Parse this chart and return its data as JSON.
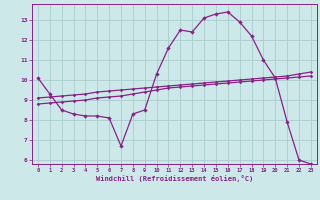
{
  "xlabel": "Windchill (Refroidissement éolien,°C)",
  "bg_color": "#cce8e8",
  "grid_color": "#aacccc",
  "line_color": "#882288",
  "xlim": [
    -0.5,
    23.5
  ],
  "ylim": [
    5.8,
    13.8
  ],
  "xticks": [
    0,
    1,
    2,
    3,
    4,
    5,
    6,
    7,
    8,
    9,
    10,
    11,
    12,
    13,
    14,
    15,
    16,
    17,
    18,
    19,
    20,
    21,
    22,
    23
  ],
  "yticks": [
    6,
    7,
    8,
    9,
    10,
    11,
    12,
    13
  ],
  "line1_x": [
    0,
    1,
    2,
    3,
    4,
    5,
    6,
    7,
    8,
    9,
    10,
    11,
    12,
    13,
    14,
    15,
    16,
    17,
    18,
    19,
    20,
    21,
    22,
    23
  ],
  "line1_y": [
    10.1,
    9.3,
    8.5,
    8.3,
    8.2,
    8.2,
    8.1,
    6.7,
    8.3,
    8.5,
    10.3,
    11.6,
    12.5,
    12.4,
    13.1,
    13.3,
    13.4,
    12.9,
    12.2,
    11.0,
    10.1,
    7.9,
    6.0,
    5.8
  ],
  "line2_x": [
    0,
    1,
    2,
    3,
    4,
    5,
    6,
    7,
    8,
    9,
    10,
    11,
    12,
    13,
    14,
    15,
    16,
    17,
    18,
    19,
    20,
    21,
    22,
    23
  ],
  "line2_y": [
    9.1,
    9.15,
    9.2,
    9.25,
    9.3,
    9.4,
    9.45,
    9.5,
    9.55,
    9.6,
    9.65,
    9.7,
    9.75,
    9.8,
    9.85,
    9.9,
    9.95,
    10.0,
    10.05,
    10.1,
    10.15,
    10.2,
    10.3,
    10.4
  ],
  "line3_x": [
    0,
    1,
    2,
    3,
    4,
    5,
    6,
    7,
    8,
    9,
    10,
    11,
    12,
    13,
    14,
    15,
    16,
    17,
    18,
    19,
    20,
    21,
    22,
    23
  ],
  "line3_y": [
    8.8,
    8.85,
    8.9,
    8.95,
    9.0,
    9.1,
    9.15,
    9.2,
    9.3,
    9.4,
    9.5,
    9.6,
    9.65,
    9.7,
    9.75,
    9.8,
    9.85,
    9.9,
    9.95,
    10.0,
    10.05,
    10.1,
    10.15,
    10.2
  ]
}
